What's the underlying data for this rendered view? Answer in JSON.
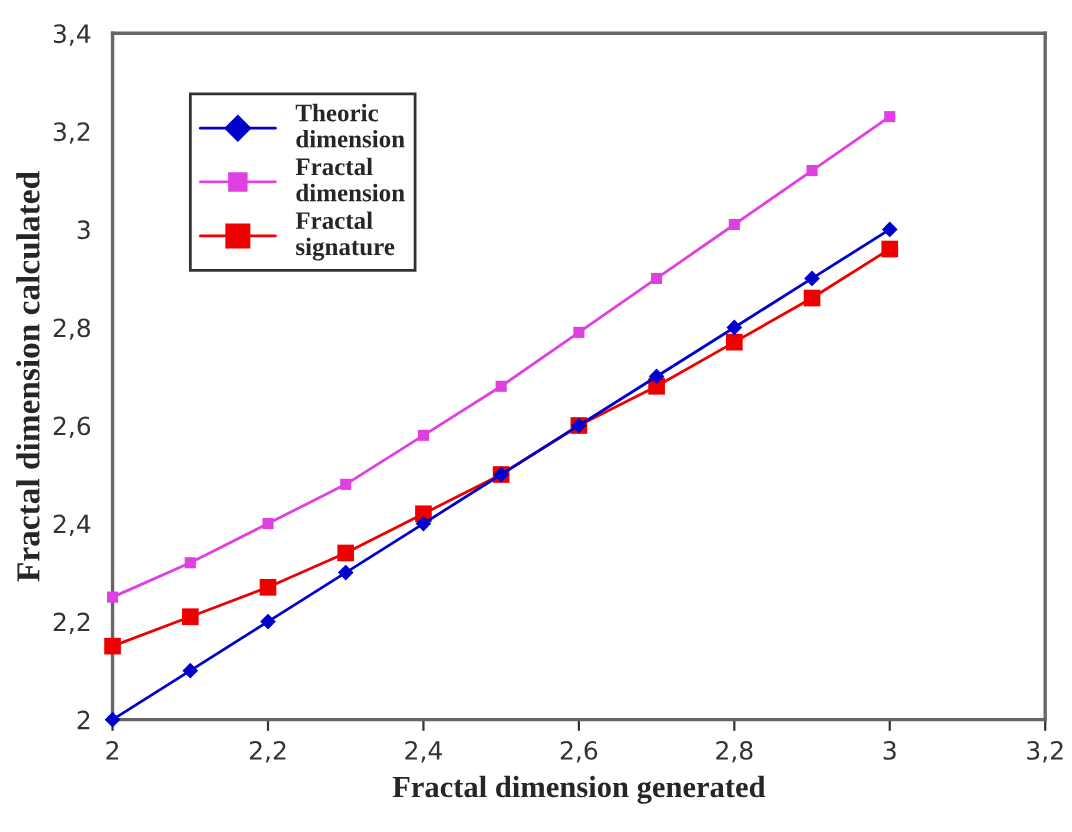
{
  "chart_data": {
    "type": "line",
    "xlabel": "Fractal dimension generated",
    "ylabel": "Fractal dimension calculated",
    "x": [
      2,
      2.1,
      2.2,
      2.3,
      2.4,
      2.5,
      2.6,
      2.7,
      2.8,
      2.9,
      3
    ],
    "series": [
      {
        "name": "Theoric dimension",
        "color": "#0000cc",
        "marker": "diamond",
        "values": [
          2,
          2.1,
          2.2,
          2.3,
          2.4,
          2.5,
          2.6,
          2.7,
          2.8,
          2.9,
          3
        ]
      },
      {
        "name": "Fractal dimension",
        "color": "#e040e0",
        "marker": "square",
        "values": [
          2.25,
          2.32,
          2.4,
          2.48,
          2.58,
          2.68,
          2.79,
          2.9,
          3.01,
          3.12,
          3.23
        ]
      },
      {
        "name": "Fractal signature",
        "color": "#ee0000",
        "marker": "square",
        "values": [
          2.15,
          2.21,
          2.27,
          2.34,
          2.42,
          2.5,
          2.6,
          2.68,
          2.77,
          2.86,
          2.96
        ]
      }
    ],
    "xlim": [
      2,
      3.2
    ],
    "xticks": [
      2,
      {
        "value": 2.2,
        "label": "2,2"
      },
      {
        "value": 2.4,
        "label": "2,4"
      },
      {
        "value": 2.6,
        "label": "2,6"
      },
      {
        "value": 2.8,
        "label": "2,8"
      },
      3,
      {
        "value": 3.2,
        "label": "3,2"
      }
    ],
    "ylim": [
      2,
      3.4
    ],
    "yticks": [
      2,
      {
        "value": 2.2,
        "label": "2,2"
      },
      {
        "value": 2.4,
        "label": "2,4"
      },
      {
        "value": 2.6,
        "label": "2,6"
      },
      {
        "value": 2.8,
        "label": "2,8"
      },
      3,
      {
        "value": 3.2,
        "label": "3,2"
      },
      {
        "value": 3.4,
        "label": "3,4"
      }
    ],
    "grid": false,
    "legend": "top left"
  }
}
